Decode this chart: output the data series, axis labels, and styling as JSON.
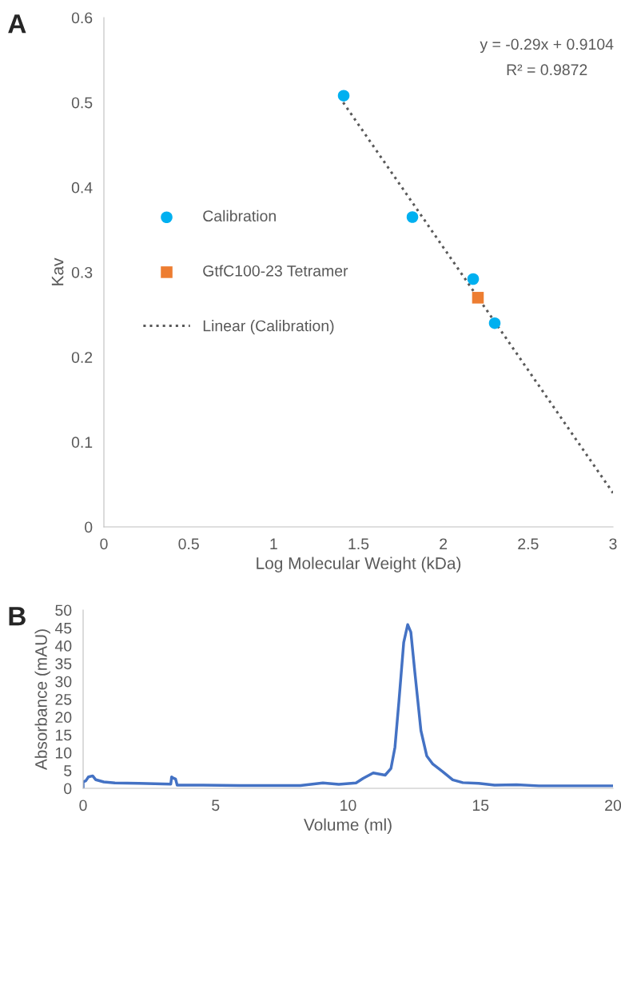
{
  "chart_data": [
    {
      "type": "scatter",
      "title": "A",
      "xlabel": "Log Molecular Weight (kDa)",
      "ylabel": "Kav",
      "annotations": [
        "y = -0.29x + 0.9104",
        "R² = 0.9872"
      ],
      "xlim": [
        0,
        3
      ],
      "ylim": [
        0,
        0.6
      ],
      "xticks": [
        0,
        0.5,
        1,
        1.5,
        2,
        2.5,
        3
      ],
      "yticks": [
        0,
        0.1,
        0.2,
        0.3,
        0.4,
        0.5,
        0.6
      ],
      "grid": false,
      "legend": "left",
      "series": [
        {
          "name": "Calibration",
          "marker": "circle",
          "color": "#00b0f0",
          "x": [
            1.413,
            1.818,
            2.176,
            2.303
          ],
          "values": [
            0.508,
            0.365,
            0.292,
            0.24
          ]
        },
        {
          "name": "GtfC100-23 Tetramer",
          "marker": "square",
          "color": "#ed7d31",
          "x": [
            2.204
          ],
          "values": [
            0.27
          ]
        },
        {
          "name": "Linear (Calibration)",
          "type": "line",
          "line_style": "dotted",
          "color": "#595959",
          "x": [
            1.41,
            3
          ],
          "values": [
            0.5,
            0.04
          ]
        }
      ]
    },
    {
      "type": "line",
      "title": "B",
      "xlabel": "Volume (ml)",
      "ylabel": "Absorbance (mAU)",
      "xlim": [
        0,
        20
      ],
      "ylim": [
        0,
        50
      ],
      "xticks": [
        0,
        5,
        10,
        15,
        20
      ],
      "yticks": [
        0,
        5,
        10,
        15,
        20,
        25,
        30,
        35,
        40,
        45,
        50
      ],
      "grid": false,
      "legend": false,
      "series": [
        {
          "line_style": "solid",
          "color": "#4472c4",
          "x": [
            0,
            0,
            0.1,
            0.2,
            0.36,
            0.48,
            0.78,
            1.2,
            2.1,
            3.31,
            3.34,
            3.4,
            3.49,
            3.55,
            4.4,
            5.9,
            8.2,
            9.05,
            9.65,
            10.3,
            10.57,
            10.95,
            11.4,
            11.62,
            11.77,
            11.92,
            12.1,
            12.25,
            12.37,
            12.52,
            12.75,
            12.97,
            13.2,
            13.57,
            13.95,
            14.33,
            14.93,
            15.53,
            16.36,
            17.2,
            20
          ],
          "values": [
            0,
            1.8,
            2.1,
            3.2,
            3.5,
            2.4,
            1.8,
            1.5,
            1.4,
            1.2,
            3.2,
            2.9,
            2.6,
            0.9,
            0.9,
            0.8,
            0.8,
            1.5,
            1.1,
            1.5,
            2.8,
            4.3,
            3.7,
            5.6,
            11.5,
            24.4,
            40.9,
            45.9,
            43.8,
            32.6,
            16.2,
            9.1,
            6.8,
            4.7,
            2.4,
            1.6,
            1.4,
            0.9,
            1.0,
            0.7,
            0.7
          ]
        }
      ]
    }
  ]
}
